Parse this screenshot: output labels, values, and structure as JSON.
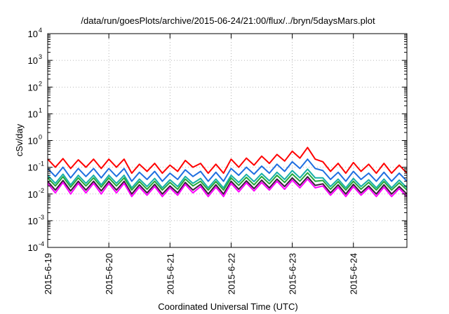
{
  "chart_data": {
    "type": "line",
    "title": "/data/run/goesPlots/archive/2015-06-24/21:00/flux/../bryn/5daysMars.plot",
    "xlabel": "Coordinated Universal Time (UTC)",
    "ylabel": "cSv/day",
    "yscale": "log",
    "ylim": [
      0.0001,
      10000
    ],
    "xlim": [
      "2015-06-19T00:00",
      "2015-06-24T21:00"
    ],
    "grid": true,
    "legend": "none",
    "x_ticks": [
      "2015-6-19",
      "2015-6-20",
      "2015-6-21",
      "2015-6-22",
      "2015-6-23",
      "2015-6-24"
    ],
    "y_ticks": [
      {
        "value": 0.0001,
        "base": "10",
        "exp": "-4"
      },
      {
        "value": 0.001,
        "base": "10",
        "exp": "-3"
      },
      {
        "value": 0.01,
        "base": "10",
        "exp": "-2"
      },
      {
        "value": 0.1,
        "base": "10",
        "exp": "-1"
      },
      {
        "value": 1,
        "base": "10",
        "exp": "0"
      },
      {
        "value": 10,
        "base": "10",
        "exp": "1"
      },
      {
        "value": 100,
        "base": "10",
        "exp": "2"
      },
      {
        "value": 1000,
        "base": "10",
        "exp": "3"
      },
      {
        "value": 10000,
        "base": "10",
        "exp": "4"
      }
    ],
    "sample_hours": [
      0,
      3,
      6,
      9,
      12,
      15,
      18,
      21,
      24,
      27,
      30,
      33,
      36,
      39,
      42,
      45,
      48,
      51,
      54,
      57,
      60,
      63,
      66,
      69,
      72,
      75,
      78,
      81,
      84,
      87,
      90,
      93,
      96,
      99,
      102,
      105,
      108,
      111,
      114,
      117,
      120,
      123,
      126,
      129,
      132,
      135,
      138,
      141
    ],
    "series": [
      {
        "color": "#ff0000",
        "values": [
          0.2,
          0.1,
          0.21,
          0.09,
          0.19,
          0.1,
          0.2,
          0.09,
          0.2,
          0.1,
          0.2,
          0.06,
          0.13,
          0.07,
          0.14,
          0.06,
          0.12,
          0.07,
          0.18,
          0.1,
          0.14,
          0.06,
          0.13,
          0.06,
          0.2,
          0.1,
          0.22,
          0.12,
          0.26,
          0.14,
          0.3,
          0.17,
          0.4,
          0.22,
          0.55,
          0.2,
          0.16,
          0.07,
          0.14,
          0.06,
          0.15,
          0.07,
          0.13,
          0.06,
          0.14,
          0.06,
          0.12,
          0.06
        ]
      },
      {
        "color": "#1f6fe0",
        "values": [
          0.09,
          0.045,
          0.1,
          0.04,
          0.09,
          0.045,
          0.09,
          0.04,
          0.09,
          0.045,
          0.09,
          0.03,
          0.065,
          0.035,
          0.07,
          0.03,
          0.06,
          0.035,
          0.08,
          0.045,
          0.07,
          0.03,
          0.065,
          0.03,
          0.09,
          0.05,
          0.1,
          0.055,
          0.11,
          0.06,
          0.13,
          0.07,
          0.16,
          0.09,
          0.2,
          0.09,
          0.075,
          0.035,
          0.065,
          0.03,
          0.07,
          0.035,
          0.06,
          0.03,
          0.065,
          0.03,
          0.06,
          0.03
        ]
      },
      {
        "color": "#17b0a7",
        "values": [
          0.05,
          0.025,
          0.055,
          0.022,
          0.05,
          0.025,
          0.05,
          0.022,
          0.05,
          0.025,
          0.05,
          0.017,
          0.036,
          0.019,
          0.038,
          0.017,
          0.034,
          0.019,
          0.045,
          0.025,
          0.038,
          0.017,
          0.036,
          0.017,
          0.05,
          0.027,
          0.054,
          0.029,
          0.058,
          0.031,
          0.065,
          0.035,
          0.075,
          0.04,
          0.085,
          0.04,
          0.04,
          0.019,
          0.036,
          0.017,
          0.038,
          0.019,
          0.034,
          0.017,
          0.036,
          0.017,
          0.033,
          0.017
        ]
      },
      {
        "color": "#22a83a",
        "values": [
          0.04,
          0.02,
          0.044,
          0.018,
          0.04,
          0.02,
          0.04,
          0.018,
          0.04,
          0.02,
          0.04,
          0.014,
          0.029,
          0.015,
          0.03,
          0.014,
          0.027,
          0.015,
          0.036,
          0.02,
          0.03,
          0.014,
          0.029,
          0.014,
          0.04,
          0.021,
          0.042,
          0.022,
          0.045,
          0.024,
          0.05,
          0.027,
          0.056,
          0.03,
          0.062,
          0.03,
          0.032,
          0.015,
          0.029,
          0.014,
          0.03,
          0.015,
          0.027,
          0.014,
          0.029,
          0.014,
          0.026,
          0.014
        ]
      },
      {
        "color": "#3a1f3a",
        "values": [
          0.03,
          0.014,
          0.032,
          0.013,
          0.03,
          0.014,
          0.03,
          0.013,
          0.03,
          0.014,
          0.03,
          0.01,
          0.022,
          0.011,
          0.023,
          0.01,
          0.02,
          0.011,
          0.027,
          0.014,
          0.023,
          0.01,
          0.022,
          0.01,
          0.03,
          0.015,
          0.031,
          0.016,
          0.033,
          0.017,
          0.036,
          0.019,
          0.04,
          0.021,
          0.044,
          0.021,
          0.024,
          0.011,
          0.022,
          0.01,
          0.023,
          0.011,
          0.02,
          0.01,
          0.022,
          0.01,
          0.019,
          0.01
        ]
      },
      {
        "color": "#ff00ff",
        "values": [
          0.025,
          0.011,
          0.027,
          0.01,
          0.025,
          0.011,
          0.025,
          0.01,
          0.025,
          0.011,
          0.025,
          0.008,
          0.018,
          0.009,
          0.019,
          0.008,
          0.017,
          0.009,
          0.023,
          0.011,
          0.019,
          0.008,
          0.018,
          0.008,
          0.025,
          0.012,
          0.026,
          0.013,
          0.027,
          0.014,
          0.03,
          0.015,
          0.033,
          0.017,
          0.036,
          0.017,
          0.02,
          0.009,
          0.018,
          0.008,
          0.019,
          0.009,
          0.017,
          0.008,
          0.018,
          0.008,
          0.016,
          0.008
        ]
      }
    ]
  }
}
